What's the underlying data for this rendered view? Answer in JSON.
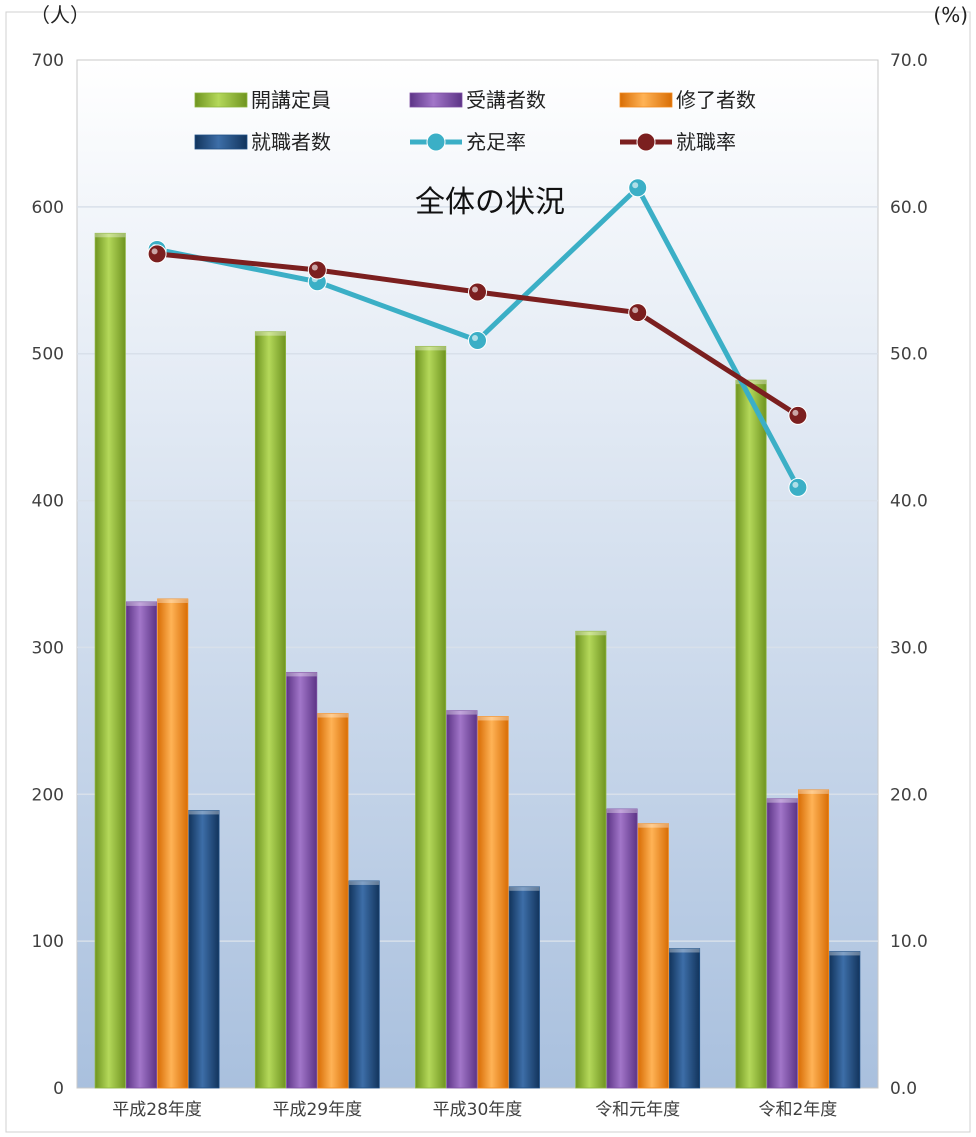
{
  "chart_data": {
    "type": "bar",
    "title": "全体の状況",
    "y_left_unit": "（人）",
    "y_right_unit": "(%)",
    "y_left_range": [
      0,
      700
    ],
    "y_right_range": [
      0,
      70
    ],
    "y_left_ticks": [
      "0",
      "100",
      "200",
      "300",
      "400",
      "500",
      "600",
      "700"
    ],
    "y_right_ticks": [
      "0.0",
      "10.0",
      "20.0",
      "30.0",
      "40.0",
      "50.0",
      "60.0",
      "70.0"
    ],
    "grid": true,
    "legend_position": "top",
    "categories": [
      "平成28年度",
      "平成29年度",
      "平成30年度",
      "令和元年度",
      "令和2年度"
    ],
    "series": [
      {
        "name": "開講定員",
        "kind": "bar",
        "axis": "left",
        "color": "#8DB43C",
        "values": [
          582,
          515,
          505,
          311,
          482
        ]
      },
      {
        "name": "受講者数",
        "kind": "bar",
        "axis": "left",
        "color": "#7E4FA3",
        "values": [
          331,
          283,
          257,
          190,
          197
        ]
      },
      {
        "name": "修了者数",
        "kind": "bar",
        "axis": "left",
        "color": "#F28A1D",
        "values": [
          333,
          255,
          253,
          180,
          203
        ]
      },
      {
        "name": "就職者数",
        "kind": "bar",
        "axis": "left",
        "color": "#1E4F86",
        "values": [
          189,
          141,
          137,
          95,
          93
        ]
      },
      {
        "name": "充足率",
        "kind": "line",
        "axis": "right",
        "color": "#3BAFC6",
        "values": [
          57.1,
          54.9,
          50.9,
          61.3,
          40.9
        ]
      },
      {
        "name": "就職率",
        "kind": "line",
        "axis": "right",
        "color": "#7B1F1F",
        "values": [
          56.8,
          55.7,
          54.2,
          52.8,
          45.8
        ]
      }
    ]
  }
}
